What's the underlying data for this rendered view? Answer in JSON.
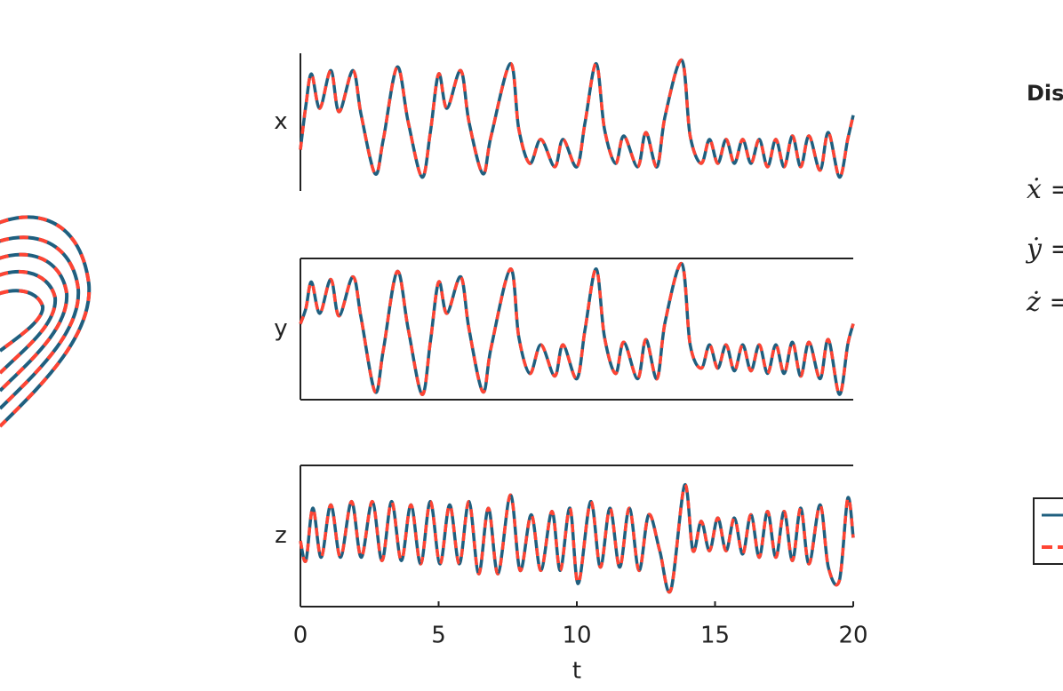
{
  "side_title": "Dis",
  "equations": [
    "ẋ =",
    "ẏ =",
    "ż ="
  ],
  "chart_data": [
    {
      "type": "line",
      "ylabel": "x",
      "box": false,
      "xlim": [
        0,
        20
      ],
      "ylim": [
        -20,
        20
      ],
      "x": [
        0,
        0.2,
        0.4,
        0.7,
        1.1,
        1.4,
        1.9,
        2.2,
        2.7,
        3.0,
        3.5,
        3.9,
        4.4,
        4.7,
        5.0,
        5.3,
        5.8,
        6.1,
        6.6,
        6.9,
        7.6,
        7.9,
        8.3,
        8.7,
        9.2,
        9.5,
        10.0,
        10.3,
        10.7,
        11.0,
        11.4,
        11.7,
        12.2,
        12.5,
        12.9,
        13.2,
        13.8,
        14.1,
        14.5,
        14.8,
        15.1,
        15.4,
        15.7,
        16.0,
        16.3,
        16.6,
        16.9,
        17.2,
        17.5,
        17.8,
        18.1,
        18.4,
        18.8,
        19.1,
        19.5,
        19.8,
        20.0
      ],
      "series": [
        {
          "color": "#1f5f7f",
          "dashed": false,
          "values": [
            -8,
            5,
            14,
            4,
            15,
            3,
            15,
            2,
            -15,
            -5,
            16,
            0,
            -16,
            -3,
            14,
            4,
            15,
            0,
            -15,
            -4,
            17,
            -2,
            -12,
            -5,
            -13,
            -5,
            -13,
            0,
            17,
            -2,
            -12,
            -4,
            -13,
            -3,
            -13,
            2,
            18,
            -4,
            -12,
            -5,
            -12,
            -5,
            -12,
            -5,
            -12,
            -5,
            -13,
            -5,
            -13,
            -4,
            -13,
            -4,
            -14,
            -3,
            -16,
            -5,
            2
          ]
        },
        {
          "color": "#ff4433",
          "dashed": true,
          "values": [
            -8,
            5,
            14,
            4,
            15,
            3,
            15,
            2,
            -15,
            -5,
            16,
            0,
            -16,
            -3,
            14,
            4,
            15,
            0,
            -15,
            -4,
            17,
            -2,
            -12,
            -5,
            -13,
            -5,
            -13,
            0,
            17,
            -2,
            -12,
            -4,
            -13,
            -3,
            -13,
            2,
            18,
            -4,
            -12,
            -5,
            -12,
            -5,
            -12,
            -5,
            -12,
            -5,
            -13,
            -5,
            -13,
            -4,
            -13,
            -4,
            -14,
            -3,
            -16,
            -5,
            2
          ]
        }
      ]
    },
    {
      "type": "line",
      "ylabel": "y",
      "box": true,
      "xlim": [
        0,
        20
      ],
      "ylim": [
        -27,
        27
      ],
      "x": [
        0,
        0.2,
        0.4,
        0.7,
        1.1,
        1.4,
        1.9,
        2.2,
        2.7,
        3.0,
        3.5,
        3.9,
        4.4,
        4.7,
        5.0,
        5.3,
        5.8,
        6.1,
        6.6,
        6.9,
        7.6,
        7.9,
        8.3,
        8.7,
        9.2,
        9.5,
        10.0,
        10.3,
        10.7,
        11.0,
        11.4,
        11.7,
        12.2,
        12.5,
        12.9,
        13.2,
        13.8,
        14.1,
        14.5,
        14.8,
        15.1,
        15.4,
        15.7,
        16.0,
        16.3,
        16.6,
        16.9,
        17.2,
        17.5,
        17.8,
        18.1,
        18.4,
        18.8,
        19.1,
        19.5,
        19.8,
        20.0
      ],
      "series": [
        {
          "color": "#1f5f7f",
          "dashed": false,
          "values": [
            2,
            8,
            18,
            6,
            19,
            5,
            20,
            4,
            -24,
            -8,
            22,
            0,
            -25,
            -5,
            18,
            6,
            20,
            0,
            -24,
            -7,
            23,
            -3,
            -17,
            -6,
            -18,
            -6,
            -19,
            0,
            23,
            -3,
            -17,
            -5,
            -19,
            -4,
            -19,
            3,
            25,
            -6,
            -15,
            -6,
            -15,
            -6,
            -16,
            -6,
            -16,
            -6,
            -17,
            -6,
            -17,
            -5,
            -18,
            -5,
            -19,
            -4,
            -25,
            -6,
            2
          ]
        },
        {
          "color": "#ff4433",
          "dashed": true,
          "values": [
            2,
            8,
            18,
            6,
            19,
            5,
            20,
            4,
            -24,
            -8,
            22,
            0,
            -25,
            -5,
            18,
            6,
            20,
            0,
            -24,
            -7,
            23,
            -3,
            -17,
            -6,
            -18,
            -6,
            -19,
            0,
            23,
            -3,
            -17,
            -5,
            -19,
            -4,
            -19,
            3,
            25,
            -6,
            -15,
            -6,
            -15,
            -6,
            -16,
            -6,
            -16,
            -6,
            -17,
            -6,
            -17,
            -5,
            -18,
            -5,
            -19,
            -4,
            -25,
            -6,
            2
          ]
        }
      ]
    },
    {
      "type": "line",
      "ylabel": "z",
      "xlabel": "t",
      "box": true,
      "xlim": [
        0,
        20
      ],
      "ylim": [
        5,
        48
      ],
      "xticks": [
        0,
        5,
        10,
        15,
        20
      ],
      "x": [
        0,
        0.2,
        0.45,
        0.75,
        1.1,
        1.45,
        1.85,
        2.2,
        2.6,
        2.95,
        3.3,
        3.65,
        4.0,
        4.35,
        4.7,
        5.05,
        5.4,
        5.75,
        6.1,
        6.45,
        6.8,
        7.15,
        7.6,
        7.95,
        8.35,
        8.7,
        9.1,
        9.4,
        9.75,
        10.05,
        10.5,
        10.85,
        11.2,
        11.55,
        11.9,
        12.25,
        12.6,
        13.0,
        13.4,
        13.9,
        14.2,
        14.5,
        14.8,
        15.1,
        15.4,
        15.7,
        16.0,
        16.3,
        16.6,
        16.9,
        17.2,
        17.5,
        17.8,
        18.1,
        18.4,
        18.8,
        19.1,
        19.5,
        19.8,
        20
      ],
      "series": [
        {
          "color": "#1f5f7f",
          "dashed": false,
          "values": [
            25,
            19,
            35,
            20,
            36,
            20,
            37,
            20,
            37,
            19,
            37,
            19,
            36,
            18,
            37,
            18,
            36,
            18,
            37,
            15,
            35,
            15,
            39,
            16,
            33,
            16,
            34,
            16,
            35,
            12,
            37,
            17,
            35,
            17,
            35,
            16,
            33,
            22,
            10,
            42,
            22,
            31,
            22,
            32,
            22,
            32,
            21,
            33,
            20,
            34,
            20,
            34,
            19,
            35,
            18,
            36,
            17,
            13,
            38,
            26
          ]
        },
        {
          "color": "#ff4433",
          "dashed": true,
          "values": [
            25,
            19,
            35,
            20,
            36,
            20,
            37,
            20,
            37,
            19,
            37,
            19,
            36,
            18,
            37,
            18,
            36,
            18,
            37,
            15,
            35,
            15,
            39,
            16,
            33,
            16,
            34,
            16,
            35,
            12,
            37,
            17,
            35,
            17,
            35,
            16,
            33,
            22,
            10,
            42,
            22,
            31,
            22,
            32,
            22,
            32,
            21,
            33,
            20,
            34,
            20,
            34,
            19,
            35,
            18,
            36,
            17,
            13,
            38,
            26
          ]
        }
      ]
    }
  ]
}
